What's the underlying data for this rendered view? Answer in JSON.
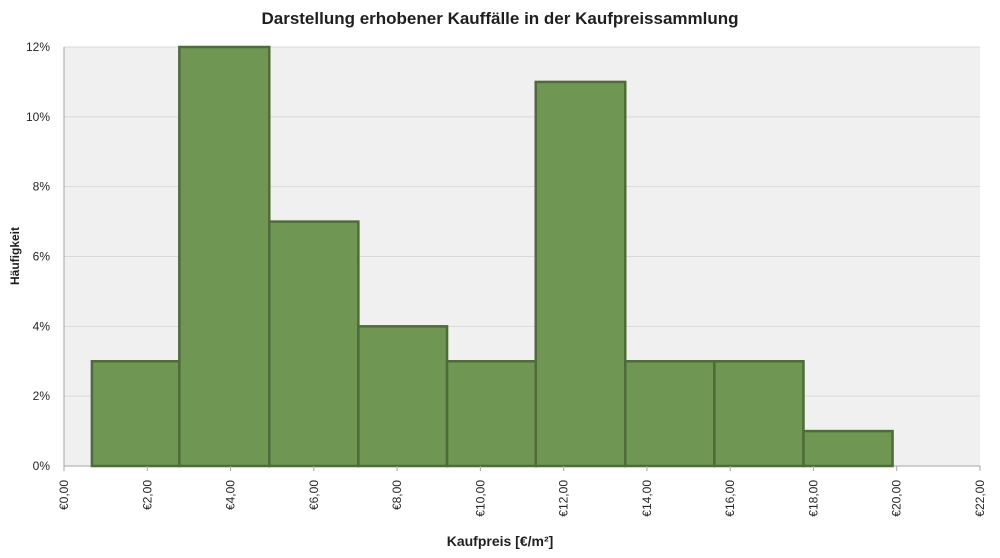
{
  "chart_data": {
    "type": "bar",
    "title": "Darstellung erhobener Kauffälle in der Kaufpreissammlung",
    "xlabel": "Kaufpreis [€/m²]",
    "ylabel": "Häufigkeit",
    "bins": [
      {
        "from": 0.67,
        "to": 2.77,
        "value": 3
      },
      {
        "from": 2.77,
        "to": 4.93,
        "value": 12
      },
      {
        "from": 4.93,
        "to": 7.07,
        "value": 7
      },
      {
        "from": 7.07,
        "to": 9.2,
        "value": 4
      },
      {
        "from": 9.2,
        "to": 11.33,
        "value": 3
      },
      {
        "from": 11.33,
        "to": 13.48,
        "value": 11
      },
      {
        "from": 13.48,
        "to": 15.62,
        "value": 3
      },
      {
        "from": 15.62,
        "to": 17.76,
        "value": 3
      },
      {
        "from": 17.76,
        "to": 19.9,
        "value": 1
      }
    ],
    "xlim": [
      0,
      22
    ],
    "ylim": [
      0,
      12
    ],
    "x_ticks": [
      0,
      2,
      4,
      6,
      8,
      10,
      12,
      14,
      16,
      18,
      20,
      22
    ],
    "x_tick_labels": [
      "€0,00",
      "€2,00",
      "€4,00",
      "€6,00",
      "€8,00",
      "€10,00",
      "€12,00",
      "€14,00",
      "€16,00",
      "€18,00",
      "€20,00",
      "€22,00"
    ],
    "y_ticks": [
      0,
      2,
      4,
      6,
      8,
      10,
      12
    ],
    "y_tick_labels": [
      "0%",
      "2%",
      "4%",
      "6%",
      "8%",
      "10%",
      "12%"
    ],
    "grid": true,
    "colors": {
      "bar_fill": "#6f9653",
      "bar_stroke": "#4f6b3a",
      "plot_background": "#f0f0f0",
      "gridline": "#d9d9d9",
      "axis_line": "#a6a6a6"
    }
  }
}
